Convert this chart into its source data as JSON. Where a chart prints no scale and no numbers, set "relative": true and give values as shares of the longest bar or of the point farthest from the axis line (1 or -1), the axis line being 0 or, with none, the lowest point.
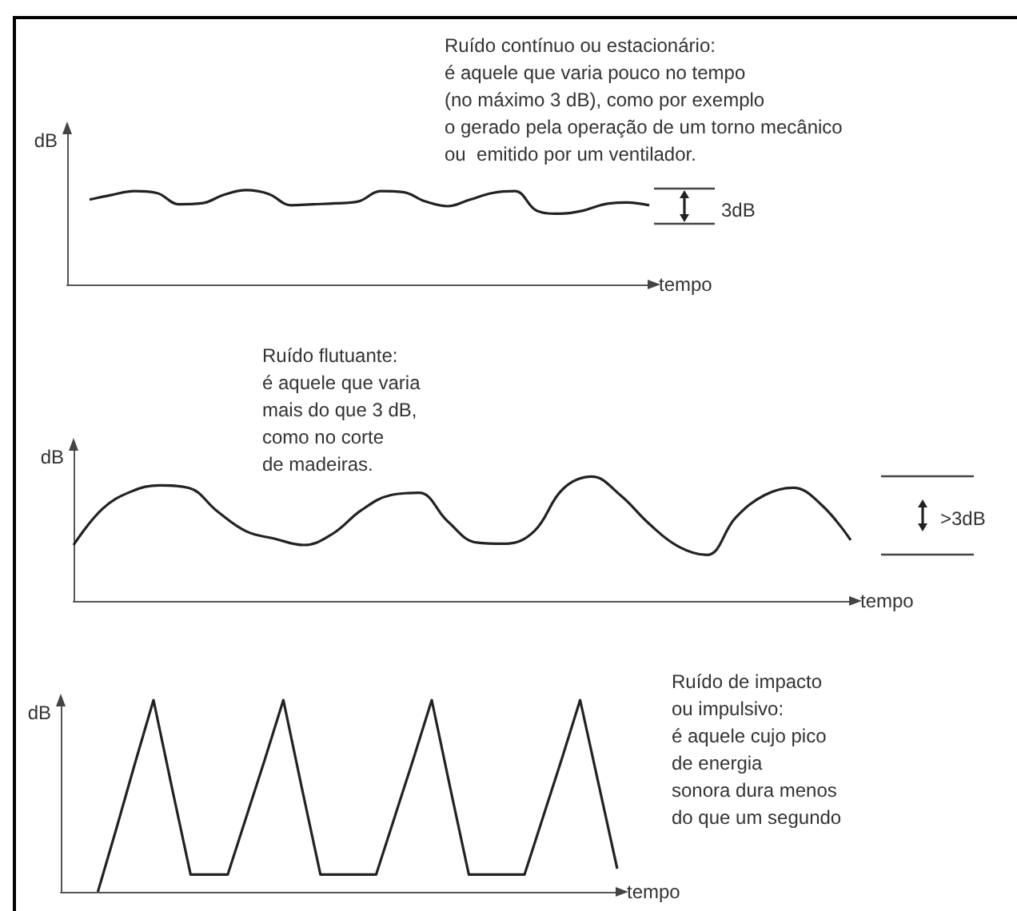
{
  "chart_data": [
    {
      "type": "line",
      "relative": true,
      "marker": "none",
      "color": "#222222",
      "xlabel": "tempo",
      "ylabel": "dB",
      "annotations": [
        "Ruído contínuo ou estacionário:\né aquele que varia pouco no tempo\n(no máximo 3 dB), como por exemplo\no gerado pela operação de um torno mecânico\nou  emitido por um ventilador.",
        "3dB"
      ],
      "categories": [
        null,
        null,
        null,
        null,
        null,
        null,
        null,
        null,
        null,
        null,
        null,
        null,
        null,
        null,
        null,
        null,
        null,
        null,
        null,
        null,
        null,
        null,
        null,
        null,
        null,
        null,
        null
      ],
      "values": [
        null,
        0.9,
        0.95,
        0.99,
        0.97,
        0.85,
        0.86,
        0.95,
        1.0,
        0.96,
        0.84,
        0.85,
        0.86,
        0.88,
        0.99,
        0.98,
        0.88,
        0.83,
        0.9,
        0.97,
        0.99,
        0.78,
        0.75,
        0.78,
        0.85,
        0.87,
        0.84
      ]
    },
    {
      "type": "line",
      "relative": true,
      "marker": "none",
      "color": "#222222",
      "xlabel": "tempo",
      "ylabel": "dB",
      "annotations": [
        "Ruído flutuante:\né aquele que varia\nmais do que 3 dB,\ncomo no corte\nde madeiras.",
        ">3dB"
      ],
      "categories": [
        null,
        null,
        null,
        null,
        null,
        null,
        null,
        null,
        null,
        null,
        null,
        null,
        null,
        null,
        null,
        null,
        null,
        null,
        null,
        null,
        null,
        null,
        null,
        null,
        null,
        null,
        null,
        null
      ],
      "values": [
        0.45,
        0.74,
        0.88,
        0.93,
        0.91,
        0.72,
        0.56,
        0.5,
        0.45,
        0.54,
        0.73,
        0.85,
        0.87,
        0.64,
        0.47,
        0.46,
        0.56,
        0.9,
        1.0,
        0.85,
        0.62,
        0.44,
        0.37,
        0.67,
        0.85,
        0.91,
        0.77,
        0.49
      ]
    },
    {
      "type": "line",
      "relative": true,
      "marker": "none",
      "color": "#222222",
      "xlabel": "tempo",
      "ylabel": "dB",
      "annotations": [
        "Ruído de impacto\nou impulsivo:\né aquele cujo pico\nde energia\nsonora dura menos\ndo que um segundo"
      ],
      "categories": [
        null,
        null,
        null,
        null,
        null,
        null,
        null,
        null,
        null,
        null,
        null,
        null,
        null,
        null,
        null,
        null,
        null,
        null,
        null,
        null,
        null,
        null,
        null,
        null,
        null,
        null,
        null,
        null,
        null,
        null,
        null
      ],
      "values": [
        null,
        null,
        0,
        0.33,
        0.67,
        1.0,
        0.54,
        0.09,
        0.09,
        0.09,
        0.39,
        0.69,
        1.0,
        0.54,
        0.09,
        0.09,
        0.09,
        0.09,
        0.39,
        0.69,
        1.0,
        0.54,
        0.09,
        0.09,
        0.09,
        0.09,
        0.39,
        0.69,
        1.0,
        0.56,
        0.12
      ]
    }
  ]
}
